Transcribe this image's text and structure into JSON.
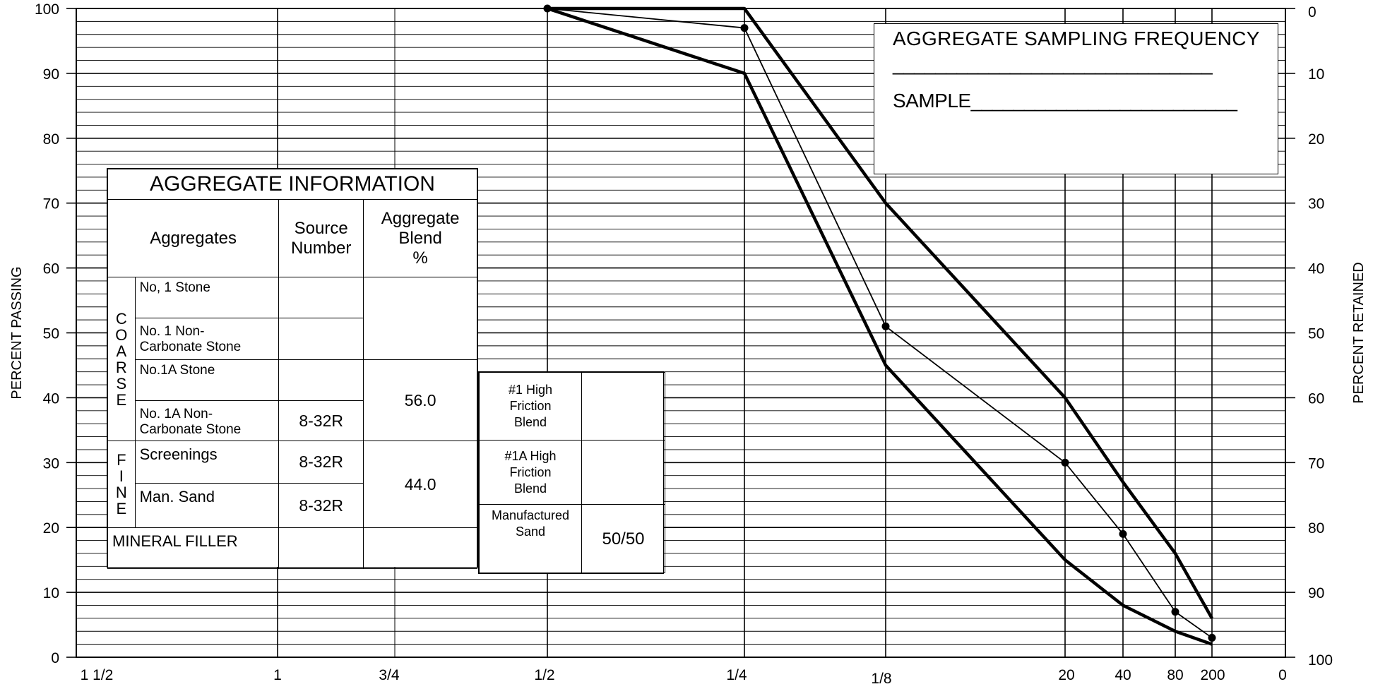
{
  "chart_data": {
    "type": "line",
    "y_axis_left": {
      "label": "PERCENT PASSING",
      "ticks": [
        "100",
        "90",
        "80",
        "70",
        "60",
        "50",
        "40",
        "30",
        "20",
        "10",
        "0"
      ],
      "range": [
        0,
        100
      ]
    },
    "y_axis_right": {
      "label": "PERCENT RETAINED",
      "ticks": [
        "0",
        "10",
        "20",
        "30",
        "40",
        "50",
        "60",
        "70",
        "80",
        "90",
        "100"
      ],
      "range": [
        0,
        100
      ]
    },
    "x_axis": {
      "categories": [
        "1 1/2",
        "1",
        "3/4",
        "1/2",
        "1/4",
        "1/8",
        "20",
        "40",
        "80",
        "200",
        "0"
      ]
    },
    "grid": "on",
    "series": [
      {
        "style": "upper-band-limit",
        "points": [
          [
            "1/2",
            100
          ],
          [
            "1/4",
            100
          ],
          [
            "1/8",
            70
          ],
          [
            "20",
            40
          ],
          [
            "40",
            27
          ],
          [
            "80",
            16
          ],
          [
            "200",
            6
          ]
        ]
      },
      {
        "style": "lower-band-limit",
        "points": [
          [
            "1/2",
            100
          ],
          [
            "1/4",
            90
          ],
          [
            "1/8",
            45
          ],
          [
            "20",
            15
          ],
          [
            "40",
            8
          ],
          [
            "80",
            4
          ],
          [
            "200",
            2
          ]
        ]
      },
      {
        "style": "gradation-with-markers",
        "points": [
          [
            "1/2",
            100
          ],
          [
            "1/4",
            97
          ],
          [
            "1/8",
            51
          ],
          [
            "20",
            30
          ],
          [
            "40",
            19
          ],
          [
            "80",
            7
          ],
          [
            "200",
            3
          ]
        ]
      }
    ]
  },
  "aggregate_info": {
    "title": "AGGREGATE INFORMATION",
    "headers": {
      "aggregates": "Aggregates",
      "source_number": [
        "Source",
        "Number"
      ],
      "blend": [
        "Aggregate",
        "Blend",
        "%"
      ]
    },
    "coarse_letters": [
      "C",
      "O",
      "A",
      "R",
      "S",
      "E"
    ],
    "fine_letters": [
      "F",
      "I",
      "N",
      "E"
    ],
    "rows": {
      "no1_stone": "No, 1 Stone",
      "no1_noncarb": [
        "No. 1 Non-",
        "Carbonate Stone"
      ],
      "no1a_stone": "No.1A Stone",
      "no1a_noncarb": [
        "No. 1A Non-",
        "Carbonate Stone"
      ],
      "no1a_noncarb_source": "8-32R",
      "coarse_blend": "56.0",
      "screenings": "Screenings",
      "screenings_source": "8-32R",
      "man_sand": "Man. Sand",
      "man_sand_source": "8-32R",
      "fine_blend": "44.0",
      "mineral_filler": "MINERAL FILLER"
    }
  },
  "side_table": {
    "rows": [
      {
        "label": [
          "#1 High",
          "Friction",
          "Blend"
        ],
        "value": ""
      },
      {
        "label": [
          "#1A High",
          "Friction",
          "Blend"
        ],
        "value": ""
      },
      {
        "label": [
          "Manufactured",
          "Sand"
        ],
        "value": "50/50"
      }
    ]
  },
  "sampling": {
    "title": "AGGREGATE SAMPLING FREQUENCY",
    "line": "______________________________",
    "sample": "SAMPLE_________________________"
  }
}
